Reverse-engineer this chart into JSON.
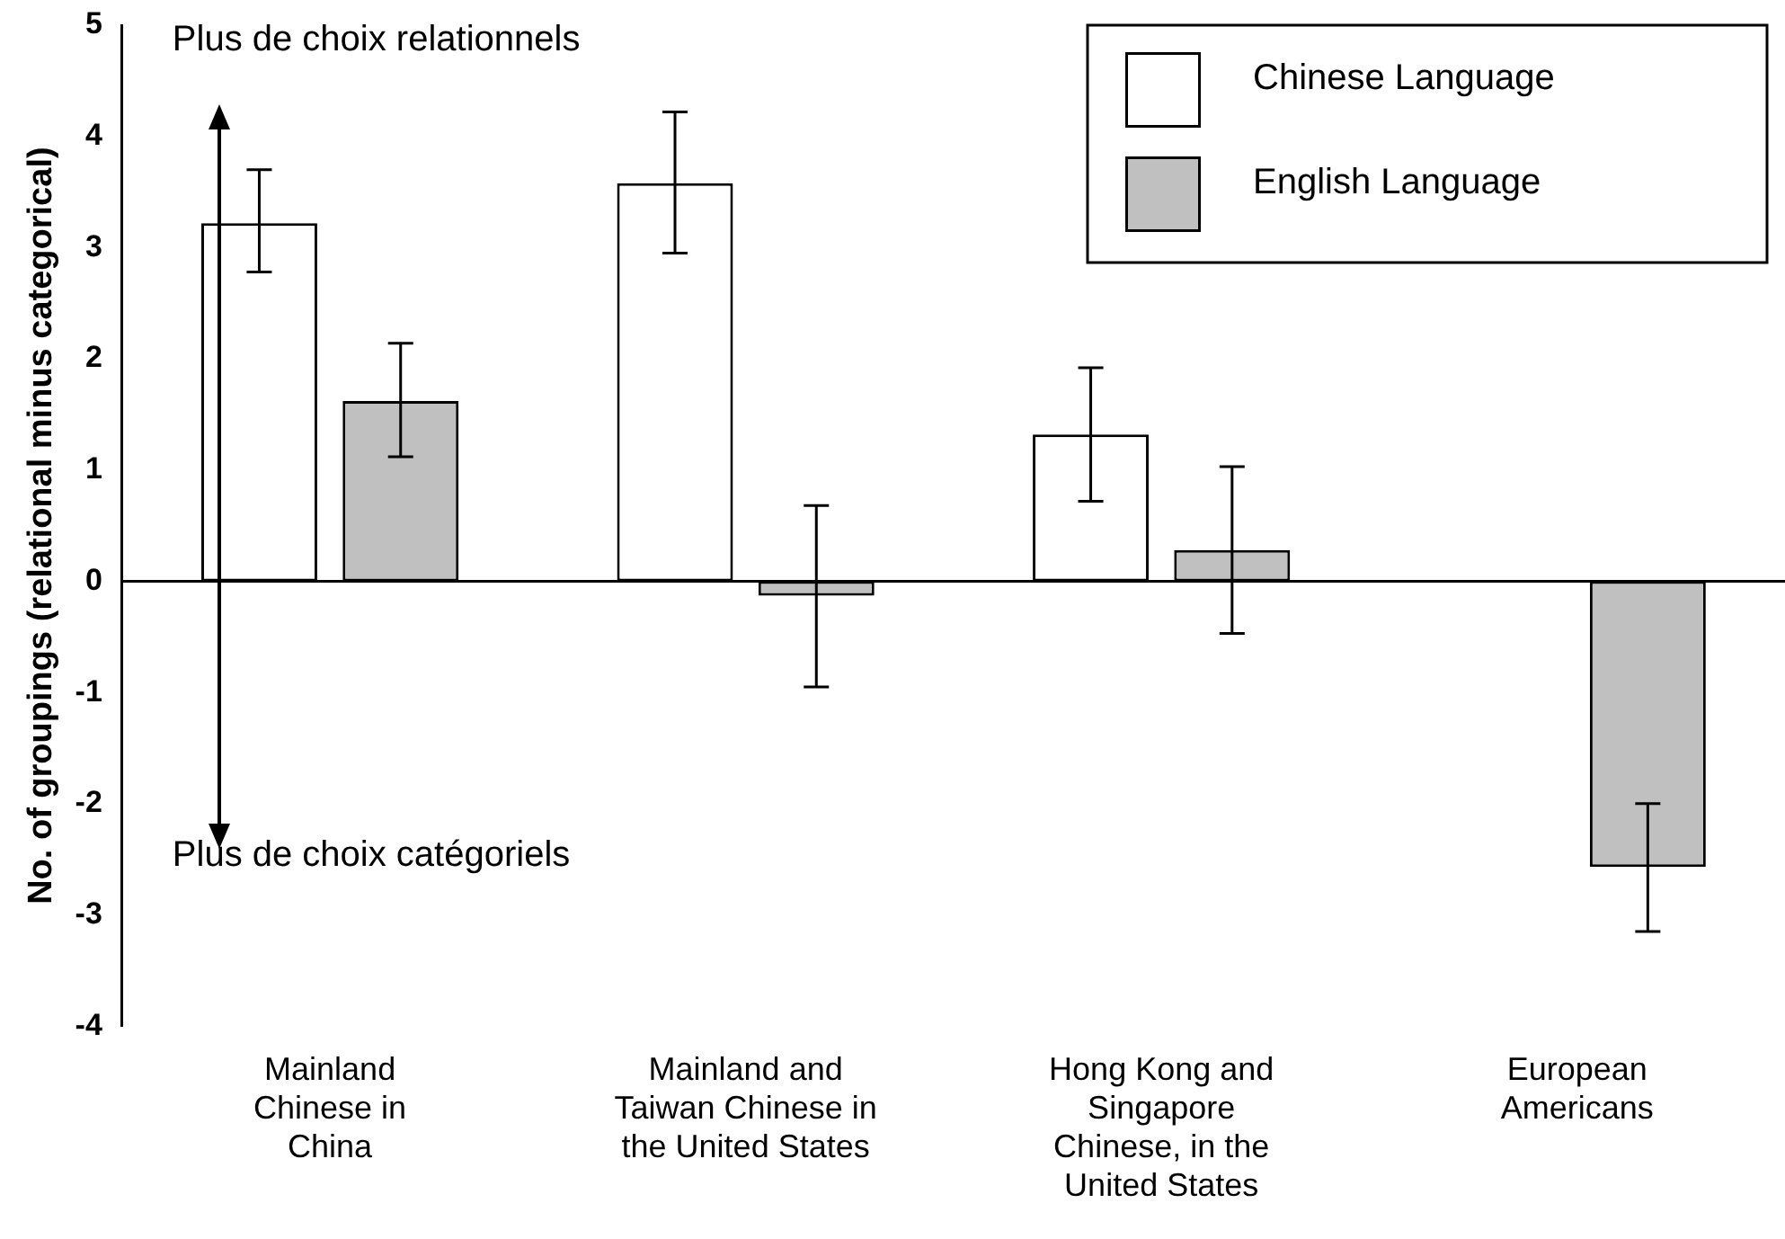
{
  "chart_data": {
    "type": "bar",
    "ylabel": "No. of groupings (relational minus categorical)",
    "categories": [
      "Mainland\nChinese in\nChina",
      "Mainland and\nTaiwan Chinese in\nthe United States",
      "Hong Kong and\nSingapore\nChinese, in the\nUnited States",
      "European\nAmericans"
    ],
    "series": [
      {
        "name": "Chinese Language",
        "color": "#ffffff",
        "values": [
          3.22,
          3.58,
          1.32,
          null
        ],
        "errors": [
          [
            2.78,
            3.7
          ],
          [
            2.95,
            4.22
          ],
          [
            0.72,
            1.92
          ],
          null
        ]
      },
      {
        "name": "English Language",
        "color": "#c0c0c0",
        "values": [
          1.62,
          -0.13,
          0.28,
          -2.57
        ],
        "errors": [
          [
            1.12,
            2.14
          ],
          [
            -0.95,
            0.68
          ],
          [
            -0.47,
            1.03
          ],
          [
            -3.15,
            -2.0
          ]
        ]
      }
    ],
    "ylim": [
      -4,
      5
    ],
    "yticks": [
      -4,
      -3,
      -2,
      -1,
      0,
      1,
      2,
      3,
      4,
      5
    ],
    "ref_lines": [
      {
        "axis": "y",
        "value": 0,
        "color": "#000000"
      }
    ],
    "legend": "top right",
    "annotations": [
      "Plus de choix relationnels",
      "Plus de choix catégoriels"
    ]
  }
}
